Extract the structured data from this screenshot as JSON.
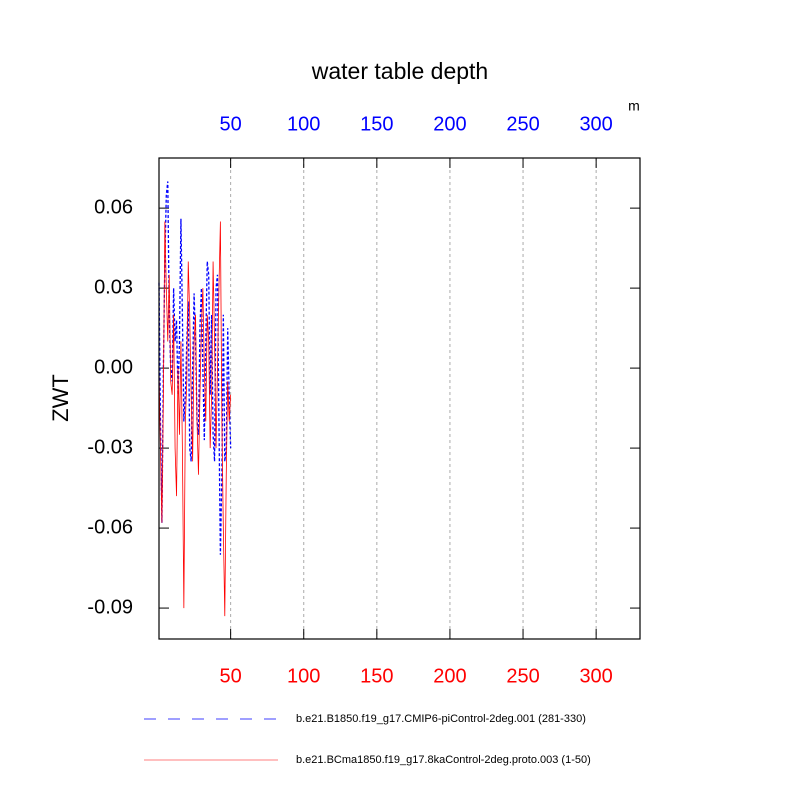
{
  "chart_data": {
    "type": "line",
    "title": "water table depth",
    "ylabel": "ZWT",
    "annotation": "m",
    "x": [
      1,
      2,
      3,
      4,
      5,
      6,
      7,
      8,
      9,
      10,
      11,
      12,
      13,
      14,
      15,
      16,
      17,
      18,
      19,
      20,
      21,
      22,
      23,
      24,
      25,
      26,
      27,
      28,
      29,
      30,
      31,
      32,
      33,
      34,
      35,
      36,
      37,
      38,
      39,
      40,
      41,
      42,
      43,
      44,
      45,
      46,
      47,
      48,
      49,
      50
    ],
    "series": [
      {
        "name": "b.e21.B1850.f19_g17.CMIP6-piControl-2deg.001 (281-330)",
        "color": "#0000ff",
        "dash": true,
        "values": [
          0.032,
          -0.02,
          -0.058,
          0.0,
          0.04,
          0.065,
          0.07,
          0.02,
          0.0,
          -0.005,
          0.03,
          0.01,
          0.018,
          -0.01,
          0.01,
          0.056,
          0.02,
          -0.02,
          -0.01,
          0.01,
          0.025,
          -0.03,
          -0.035,
          0.0,
          0.028,
          0.01,
          -0.02,
          -0.025,
          0.015,
          0.03,
          0.0,
          -0.027,
          0.01,
          0.04,
          0.035,
          -0.01,
          0.02,
          -0.025,
          -0.035,
          0.03,
          0.035,
          -0.02,
          -0.07,
          -0.04,
          0.02,
          -0.035,
          -0.03,
          0.015,
          -0.01,
          -0.03
        ]
      },
      {
        "name": "b.e21.BCma1850.f19_g17.8kaControl-2deg.proto.003 (1-50)",
        "color": "#ff0000",
        "dash": false,
        "values": [
          0.0,
          -0.03,
          -0.058,
          -0.01,
          0.055,
          0.03,
          0.01,
          0.035,
          -0.005,
          -0.01,
          0.02,
          -0.03,
          -0.048,
          0.0,
          -0.025,
          0.01,
          -0.03,
          -0.09,
          -0.02,
          -0.005,
          0.04,
          0.02,
          -0.01,
          -0.035,
          0.01,
          0.02,
          -0.02,
          -0.04,
          -0.01,
          0.015,
          0.03,
          0.0,
          -0.02,
          0.02,
          0.01,
          -0.03,
          -0.01,
          0.04,
          0.01,
          -0.03,
          0.0,
          0.03,
          0.055,
          -0.02,
          -0.06,
          -0.093,
          -0.04,
          -0.005,
          -0.02,
          -0.01
        ]
      }
    ],
    "xlim": [
      1,
      330
    ],
    "xticks": [
      50,
      100,
      150,
      200,
      250,
      300
    ],
    "x2ticks": [
      50,
      100,
      150,
      200,
      250,
      300
    ],
    "xtick_color": "#ff0000",
    "x2tick_color": "#0000ff",
    "ylim": [
      -0.1016,
      0.0788
    ],
    "yticks": [
      0.06,
      0.03,
      {
        "value": 0,
        "label": "0.00"
      },
      -0.03,
      -0.06,
      -0.09
    ],
    "grid": true
  }
}
